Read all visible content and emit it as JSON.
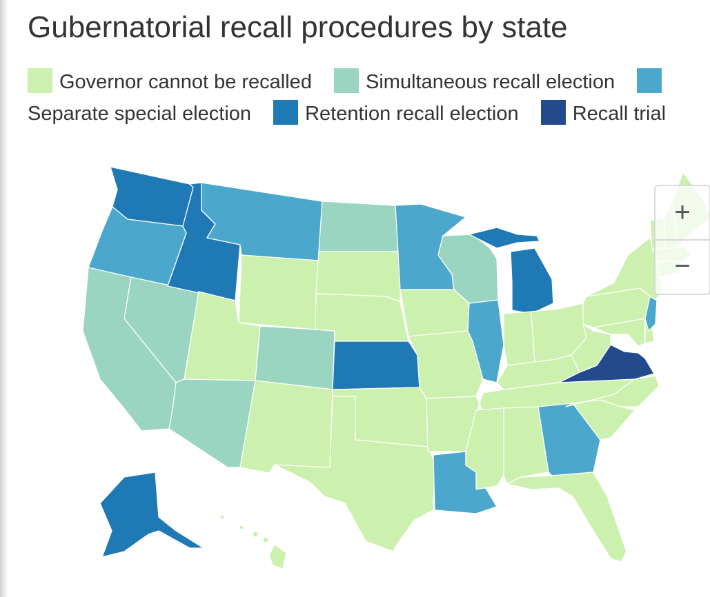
{
  "title": "Gubernatorial recall procedures by state",
  "legend": [
    {
      "label": "Governor cannot be recalled",
      "color": "#ccf0ae"
    },
    {
      "label": "Simultaneous recall election",
      "color": "#99d5c1"
    },
    {
      "label": "Separate special election",
      "color": "#4ba7cb"
    },
    {
      "label": "Retention recall election",
      "color": "#1f79b5"
    },
    {
      "label": "Recall trial",
      "color": "#234a8d"
    }
  ],
  "zoom": {
    "in_label": "+",
    "out_label": "−"
  },
  "states": {
    "WA": 3,
    "OR": 2,
    "CA": 1,
    "NV": 1,
    "ID": 3,
    "MT": 2,
    "WY": 0,
    "UT": 0,
    "AZ": 1,
    "CO": 1,
    "NM": 0,
    "ND": 1,
    "SD": 0,
    "NE": 0,
    "KS": 3,
    "OK": 0,
    "TX": 0,
    "MN": 2,
    "IA": 0,
    "MO": 0,
    "AR": 0,
    "LA": 2,
    "WI": 1,
    "IL": 2,
    "MI": 3,
    "IN": 0,
    "OH": 0,
    "KY": 0,
    "TN": 0,
    "MS": 0,
    "AL": 0,
    "GA": 2,
    "FL": 0,
    "SC": 0,
    "NC": 0,
    "VA": 4,
    "WV": 0,
    "MD": 0,
    "DE": 0,
    "PA": 0,
    "NJ": 2,
    "NY": 0,
    "VT": 0,
    "NH": 0,
    "ME": 0,
    "MA": 0,
    "CT": 0,
    "RI": 0,
    "AK": 3,
    "HI": 0
  }
}
